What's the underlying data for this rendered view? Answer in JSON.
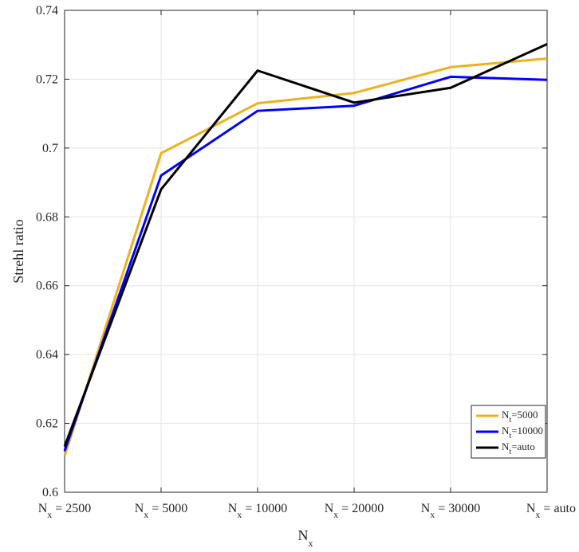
{
  "chart_data": {
    "type": "line",
    "categories": [
      {
        "main": "N",
        "sub": "x",
        "rest": " = 2500"
      },
      {
        "main": "N",
        "sub": "x",
        "rest": " = 5000"
      },
      {
        "main": "N",
        "sub": "x",
        "rest": " = 10000"
      },
      {
        "main": "N",
        "sub": "x",
        "rest": " = 20000"
      },
      {
        "main": "N",
        "sub": "x",
        "rest": " = 30000"
      },
      {
        "main": "N",
        "sub": "x",
        "rest": " = auto"
      }
    ],
    "xlabel": {
      "main": "N",
      "sub": "x"
    },
    "ylabel": "Strehl ratio",
    "ylim": [
      0.6,
      0.74
    ],
    "yticks": [
      0.6,
      0.62,
      0.64,
      0.66,
      0.68,
      0.7,
      0.72,
      0.74
    ],
    "ytick_labels": [
      "0.6",
      "0.62",
      "0.64",
      "0.66",
      "0.68",
      "0.7",
      "0.72",
      "0.74"
    ],
    "grid": true,
    "legend_position": "bottom-right",
    "series": [
      {
        "name": {
          "main": "N",
          "sub": "t",
          "rest": "=5000"
        },
        "color": "#EDB120",
        "values": [
          0.6105,
          0.6985,
          0.713,
          0.716,
          0.7235,
          0.726
        ]
      },
      {
        "name": {
          "main": "N",
          "sub": "t",
          "rest": "=10000"
        },
        "color": "#0000FF",
        "values": [
          0.612,
          0.692,
          0.7108,
          0.7123,
          0.7207,
          0.7198
        ]
      },
      {
        "name": {
          "main": "N",
          "sub": "t",
          "rest": "=auto"
        },
        "color": "#000000",
        "values": [
          0.6133,
          0.688,
          0.7225,
          0.7132,
          0.7175,
          0.7302
        ]
      }
    ]
  }
}
